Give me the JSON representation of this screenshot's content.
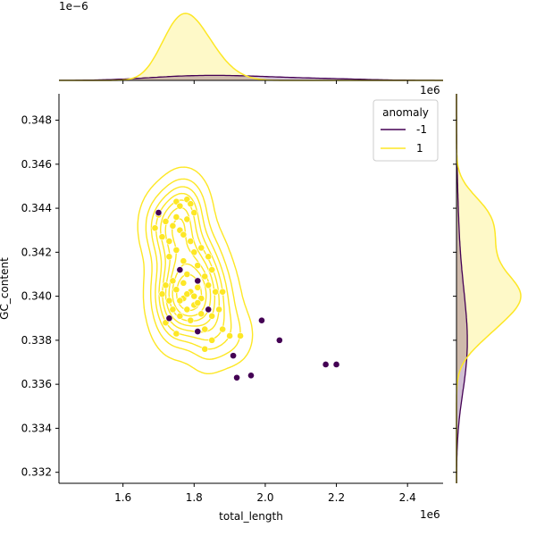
{
  "chart_data": {
    "type": "scatter",
    "title": "",
    "xlabel": "total_length",
    "ylabel": "GC_content",
    "x_offset_label": "1e6",
    "y_offset_label": "",
    "top_marginal_offset_label": "1e−6",
    "right_marginal_offset_label": "1e6",
    "xlim": [
      1.42,
      2.5
    ],
    "ylim": [
      0.3315,
      0.3492
    ],
    "xticks": [
      1.6,
      1.8,
      2.0,
      2.2,
      2.4
    ],
    "xtick_labels": [
      "1.6",
      "1.8",
      "2.0",
      "2.2",
      "2.4"
    ],
    "yticks": [
      0.332,
      0.334,
      0.336,
      0.338,
      0.34,
      0.342,
      0.344,
      0.346,
      0.348
    ],
    "ytick_labels": [
      "0.332",
      "0.334",
      "0.336",
      "0.338",
      "0.340",
      "0.342",
      "0.344",
      "0.346",
      "0.348"
    ],
    "grid": false,
    "legend": {
      "title": "anomaly",
      "placement": "top-right",
      "entries": [
        {
          "label": "-1",
          "color": "#440154"
        },
        {
          "label": "1",
          "color": "#fde725"
        }
      ]
    },
    "series": [
      {
        "name": "1",
        "color": "#fde725",
        "points": [
          [
            1.7,
            0.3437
          ],
          [
            1.72,
            0.3434
          ],
          [
            1.69,
            0.3431
          ],
          [
            1.71,
            0.3427
          ],
          [
            1.73,
            0.3425
          ],
          [
            1.75,
            0.3443
          ],
          [
            1.76,
            0.3441
          ],
          [
            1.78,
            0.3444
          ],
          [
            1.79,
            0.3442
          ],
          [
            1.8,
            0.3438
          ],
          [
            1.75,
            0.3436
          ],
          [
            1.74,
            0.3432
          ],
          [
            1.76,
            0.343
          ],
          [
            1.78,
            0.3435
          ],
          [
            1.77,
            0.3428
          ],
          [
            1.79,
            0.3425
          ],
          [
            1.75,
            0.3421
          ],
          [
            1.73,
            0.3418
          ],
          [
            1.77,
            0.3416
          ],
          [
            1.8,
            0.342
          ],
          [
            1.82,
            0.3422
          ],
          [
            1.84,
            0.3418
          ],
          [
            1.81,
            0.3414
          ],
          [
            1.78,
            0.341
          ],
          [
            1.76,
            0.3412
          ],
          [
            1.74,
            0.3407
          ],
          [
            1.72,
            0.3405
          ],
          [
            1.71,
            0.3401
          ],
          [
            1.73,
            0.3398
          ],
          [
            1.75,
            0.3403
          ],
          [
            1.77,
            0.3406
          ],
          [
            1.79,
            0.3402
          ],
          [
            1.81,
            0.3404
          ],
          [
            1.83,
            0.3409
          ],
          [
            1.85,
            0.3412
          ],
          [
            1.84,
            0.3405
          ],
          [
            1.86,
            0.3402
          ],
          [
            1.88,
            0.3402
          ],
          [
            1.82,
            0.3399
          ],
          [
            1.8,
            0.3396
          ],
          [
            1.78,
            0.3394
          ],
          [
            1.76,
            0.3391
          ],
          [
            1.74,
            0.3394
          ],
          [
            1.72,
            0.3388
          ],
          [
            1.79,
            0.3389
          ],
          [
            1.82,
            0.3392
          ],
          [
            1.85,
            0.3391
          ],
          [
            1.87,
            0.3394
          ],
          [
            1.75,
            0.3383
          ],
          [
            1.83,
            0.3385
          ],
          [
            1.85,
            0.338
          ],
          [
            1.88,
            0.3385
          ],
          [
            1.83,
            0.3376
          ],
          [
            1.9,
            0.3382
          ],
          [
            1.93,
            0.3382
          ],
          [
            1.77,
            0.3399
          ],
          [
            1.78,
            0.3401
          ],
          [
            1.76,
            0.3398
          ],
          [
            1.8,
            0.34
          ],
          [
            1.81,
            0.3397
          ]
        ]
      },
      {
        "name": "-1",
        "color": "#440154",
        "points": [
          [
            1.7,
            0.3438
          ],
          [
            1.76,
            0.3412
          ],
          [
            1.81,
            0.3407
          ],
          [
            1.84,
            0.3394
          ],
          [
            1.73,
            0.339
          ],
          [
            1.81,
            0.3384
          ],
          [
            1.91,
            0.3373
          ],
          [
            1.99,
            0.3389
          ],
          [
            2.04,
            0.338
          ],
          [
            1.92,
            0.3363
          ],
          [
            1.96,
            0.3364
          ],
          [
            2.17,
            0.3369
          ],
          [
            2.2,
            0.3369
          ]
        ]
      }
    ]
  }
}
